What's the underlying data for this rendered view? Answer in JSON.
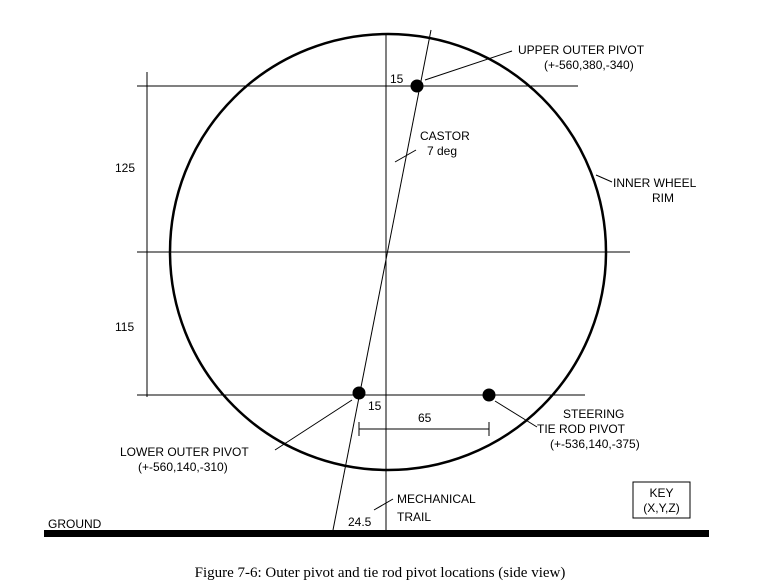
{
  "labels": {
    "upper_outer_pivot": "UPPER OUTER PIVOT",
    "upper_outer_coords": "(+-560,380,-340)",
    "castor": "CASTOR",
    "castor_angle": "7 deg",
    "inner_wheel": "INNER WHEEL",
    "rim": "RIM",
    "steering": "STEERING",
    "tie_rod_pivot": "TIE ROD PIVOT",
    "tie_rod_coords": "(+-536,140,-375)",
    "lower_outer_pivot": "LOWER OUTER PIVOT",
    "lower_outer_coords": "(+-560,140,-310)",
    "mechanical": "MECHANICAL",
    "trail": "TRAIL",
    "ground": "GROUND",
    "key_line1": "KEY",
    "key_line2": "(X,Y,Z)"
  },
  "dimensions": {
    "upper_height": "125",
    "lower_height": "115",
    "upper_offset": "15",
    "lower_offset": "15",
    "tie_rod_spacing": "65",
    "trail": "24.5"
  },
  "caption": "Figure 7-6: Outer pivot and tie rod pivot locations (side view)"
}
